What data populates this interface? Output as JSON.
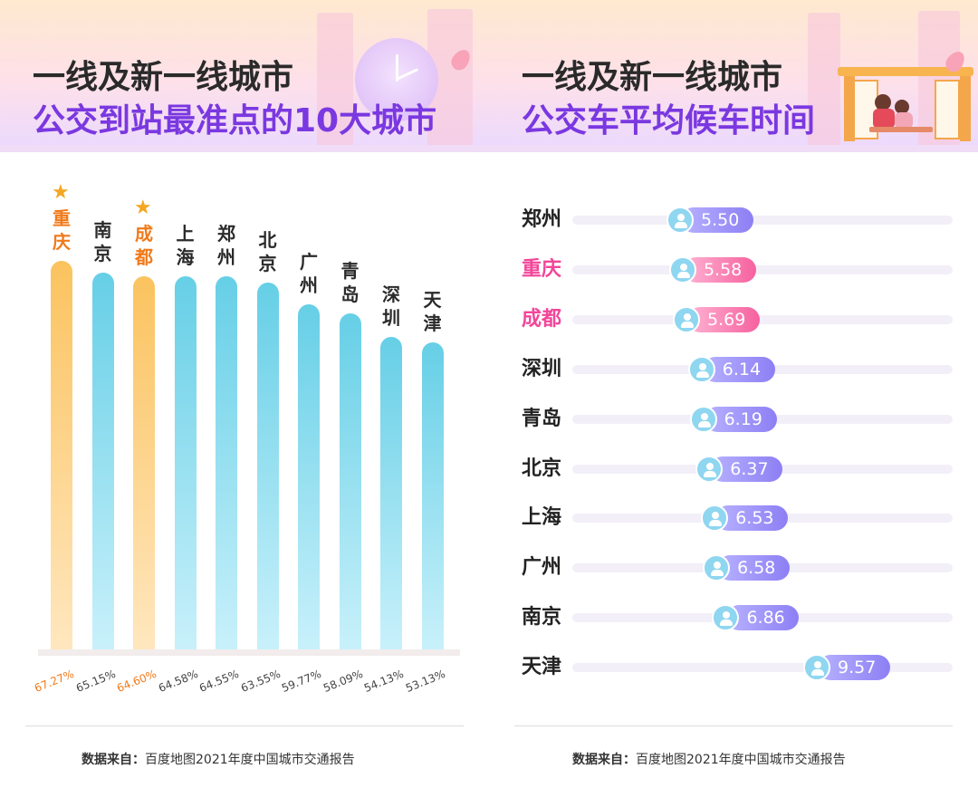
{
  "left": {
    "title_line1": "一线及新一线城市",
    "title_line2": "公交到站最准点的10大城市",
    "source_label": "数据来自：",
    "source_text": "百度地图2021年度中国城市交通报告"
  },
  "right": {
    "title_line1": "一线及新一线城市",
    "title_line2": "公交车平均候车时间",
    "source_label": "数据来自：",
    "source_text": "百度地图2021年度中国城市交通报告"
  },
  "colors": {
    "highlight_orange": "#f07a1a",
    "highlight_pink": "#f2469a",
    "bar_blue": "#66cfe6",
    "bar_gold": "#fbc35f",
    "pill_purple": "#8d7ff4",
    "pill_pink": "#f6619f"
  },
  "chart_data": [
    {
      "type": "bar",
      "categories": [
        "重庆",
        "南京",
        "成都",
        "上海",
        "郑州",
        "北京",
        "广州",
        "青岛",
        "深圳",
        "天津"
      ],
      "values": [
        67.27,
        65.15,
        64.6,
        64.58,
        64.55,
        63.55,
        59.77,
        58.09,
        54.13,
        53.13
      ],
      "value_labels": [
        "67.27%",
        "65.15%",
        "64.60%",
        "64.58%",
        "64.55%",
        "63.55%",
        "59.77%",
        "58.09%",
        "54.13%",
        "53.13%"
      ],
      "highlighted": [
        "重庆",
        "成都"
      ],
      "unit": "%"
    },
    {
      "type": "bar",
      "orientation": "horizontal",
      "categories": [
        "郑州",
        "重庆",
        "成都",
        "深圳",
        "青岛",
        "北京",
        "上海",
        "广州",
        "南京",
        "天津"
      ],
      "values": [
        5.5,
        5.58,
        5.69,
        6.14,
        6.19,
        6.37,
        6.53,
        6.58,
        6.86,
        9.57
      ],
      "value_labels": [
        "5.50",
        "5.58",
        "5.69",
        "6.14",
        "6.19",
        "6.37",
        "6.53",
        "6.58",
        "6.86",
        "9.57"
      ],
      "highlighted": [
        "重庆",
        "成都"
      ]
    }
  ]
}
